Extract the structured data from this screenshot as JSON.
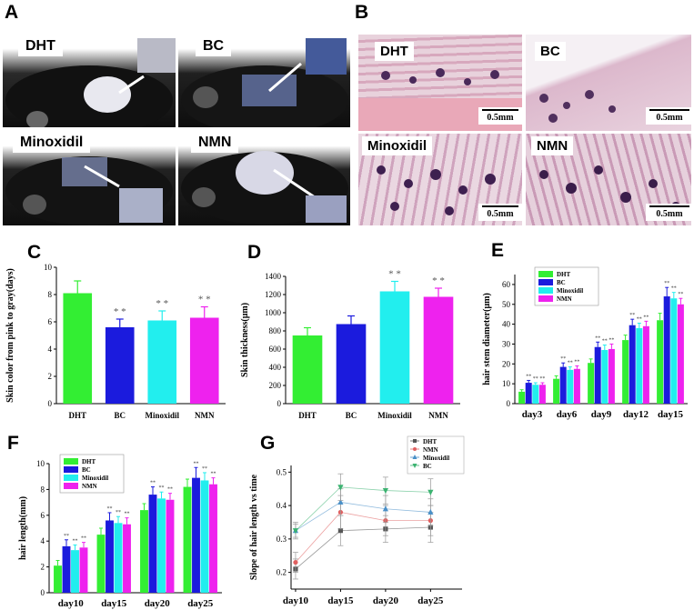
{
  "panels": {
    "A": {
      "letter": "A",
      "labels": [
        "DHT",
        "BC",
        "Minoxidil",
        "NMN"
      ]
    },
    "B": {
      "letter": "B",
      "labels": [
        "DHT",
        "BC",
        "Minoxidil",
        "NMN"
      ],
      "scale_label": "0.5mm"
    }
  },
  "colors": {
    "DHT": "#33ee33",
    "BC": "#1b1bdd",
    "Minoxidil": "#22eeee",
    "NMN": "#ee22ee"
  },
  "chart_data": [
    {
      "id": "C",
      "letter": "C",
      "type": "bar",
      "categories": [
        "DHT",
        "BC",
        "Minoxidil",
        "NMN"
      ],
      "values": [
        8.1,
        5.6,
        6.1,
        6.3
      ],
      "errors": [
        0.9,
        0.6,
        0.7,
        0.8
      ],
      "annotations": [
        "",
        "* *",
        "* *",
        "* *"
      ],
      "ylabel": "Skin color from pink to gray(days)",
      "ylim": [
        0,
        10
      ],
      "yticks": [
        0,
        2,
        4,
        6,
        8,
        10
      ],
      "grid": false
    },
    {
      "id": "D",
      "letter": "D",
      "type": "bar",
      "categories": [
        "DHT",
        "BC",
        "Minoxidil",
        "NMN"
      ],
      "values": [
        750,
        875,
        1235,
        1175
      ],
      "errors": [
        85,
        90,
        110,
        95
      ],
      "annotations": [
        "",
        "",
        "* *",
        "* *"
      ],
      "ylabel": "Skin thickness(μm)",
      "ylim": [
        0,
        1400
      ],
      "yticks": [
        0,
        200,
        400,
        600,
        800,
        1000,
        1200,
        1400
      ],
      "grid": false
    },
    {
      "id": "E",
      "letter": "E",
      "type": "bar",
      "categories": [
        "day3",
        "day6",
        "day9",
        "day12",
        "day15"
      ],
      "series": [
        {
          "name": "DHT",
          "values": [
            6,
            12.5,
            20.5,
            32,
            42
          ],
          "errors": [
            1,
            1.5,
            2,
            2.5,
            3.5
          ]
        },
        {
          "name": "BC",
          "values": [
            10.5,
            18.5,
            28.5,
            39.5,
            54
          ],
          "errors": [
            1.2,
            2,
            2.5,
            3,
            4.5
          ]
        },
        {
          "name": "Minoxidil",
          "values": [
            9.5,
            17,
            27,
            38,
            53
          ],
          "errors": [
            1,
            1.5,
            2.5,
            2.5,
            3
          ]
        },
        {
          "name": "NMN",
          "values": [
            9.5,
            17.5,
            27.5,
            39,
            50
          ],
          "errors": [
            1,
            1.5,
            2.5,
            2.5,
            3
          ]
        }
      ],
      "annotations": "**",
      "ylabel": "hair stem diameter(μm)",
      "ylim": [
        0,
        65
      ],
      "yticks": [
        0,
        10,
        20,
        30,
        40,
        50,
        60
      ],
      "legend": "top-left",
      "grid": false
    },
    {
      "id": "F",
      "letter": "F",
      "type": "bar",
      "categories": [
        "day10",
        "day15",
        "day20",
        "day25"
      ],
      "series": [
        {
          "name": "DHT",
          "values": [
            2.1,
            4.5,
            6.4,
            8.2
          ],
          "errors": [
            0.4,
            0.5,
            0.5,
            0.6
          ]
        },
        {
          "name": "BC",
          "values": [
            3.6,
            5.6,
            7.6,
            8.9
          ],
          "errors": [
            0.5,
            0.6,
            0.6,
            0.8
          ]
        },
        {
          "name": "Minoxidil",
          "values": [
            3.3,
            5.4,
            7.3,
            8.7
          ],
          "errors": [
            0.4,
            0.5,
            0.5,
            0.6
          ]
        },
        {
          "name": "NMN",
          "values": [
            3.5,
            5.3,
            7.2,
            8.4
          ],
          "errors": [
            0.4,
            0.5,
            0.5,
            0.5
          ]
        }
      ],
      "annotations": "**",
      "ylabel": "hair length(mm)",
      "ylim": [
        0,
        10
      ],
      "yticks": [
        0,
        2,
        4,
        6,
        8,
        10
      ],
      "legend": "top-left",
      "grid": false
    },
    {
      "id": "G",
      "letter": "G",
      "type": "line",
      "x": [
        "day10",
        "day15",
        "day20",
        "day25"
      ],
      "series": [
        {
          "name": "DHT",
          "values": [
            0.21,
            0.325,
            0.33,
            0.335
          ],
          "errors": [
            0.03,
            0.045,
            0.04,
            0.045
          ],
          "marker": "square",
          "color": "#555555"
        },
        {
          "name": "NMN",
          "values": [
            0.23,
            0.38,
            0.355,
            0.355
          ],
          "errors": [
            0.03,
            0.05,
            0.045,
            0.045
          ],
          "marker": "circle",
          "color": "#e06060"
        },
        {
          "name": "Minoxidil",
          "values": [
            0.325,
            0.41,
            0.39,
            0.38
          ],
          "errors": [
            0.025,
            0.04,
            0.04,
            0.04
          ],
          "marker": "triangle-up",
          "color": "#4a90c8"
        },
        {
          "name": "BC",
          "values": [
            0.325,
            0.455,
            0.445,
            0.44
          ],
          "errors": [
            0.02,
            0.04,
            0.04,
            0.04
          ],
          "marker": "triangle-down",
          "color": "#3cb371"
        }
      ],
      "ylabel": "Slope of hair length vs time",
      "ylim": [
        0.15,
        0.52
      ],
      "yticks": [
        0.2,
        0.3,
        0.4,
        0.5
      ],
      "legend": "top-right",
      "grid": false
    }
  ]
}
